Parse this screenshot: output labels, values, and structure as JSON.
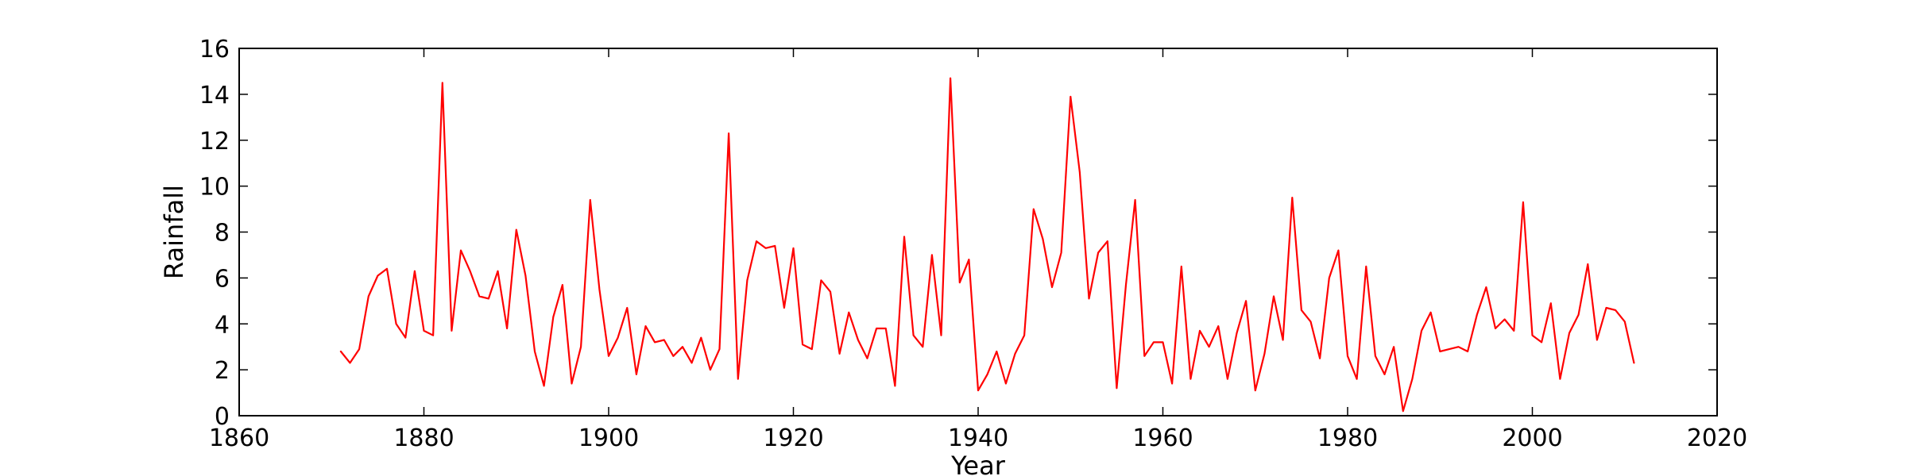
{
  "chart_data": {
    "type": "line",
    "title": "",
    "xlabel": "Year",
    "ylabel": "Rainfall",
    "xlim": [
      1860,
      2020
    ],
    "ylim": [
      0,
      16
    ],
    "xticks": [
      1860,
      1880,
      1900,
      1920,
      1940,
      1960,
      1980,
      2000,
      2020
    ],
    "yticks": [
      0,
      2,
      4,
      6,
      8,
      10,
      12,
      14,
      16
    ],
    "grid": false,
    "legend": "none",
    "series": [
      {
        "color": "#ff0000",
        "x": [
          1871,
          1872,
          1873,
          1874,
          1875,
          1876,
          1877,
          1878,
          1879,
          1880,
          1881,
          1882,
          1883,
          1884,
          1885,
          1886,
          1887,
          1888,
          1889,
          1890,
          1891,
          1892,
          1893,
          1894,
          1895,
          1896,
          1897,
          1898,
          1899,
          1900,
          1901,
          1902,
          1903,
          1904,
          1905,
          1906,
          1907,
          1908,
          1909,
          1910,
          1911,
          1912,
          1913,
          1914,
          1915,
          1916,
          1917,
          1918,
          1919,
          1920,
          1921,
          1922,
          1923,
          1924,
          1925,
          1926,
          1927,
          1928,
          1929,
          1930,
          1931,
          1932,
          1933,
          1934,
          1935,
          1936,
          1937,
          1938,
          1939,
          1940,
          1941,
          1942,
          1943,
          1944,
          1945,
          1946,
          1947,
          1948,
          1949,
          1950,
          1951,
          1952,
          1953,
          1954,
          1955,
          1956,
          1957,
          1958,
          1959,
          1960,
          1961,
          1962,
          1963,
          1964,
          1965,
          1966,
          1967,
          1968,
          1969,
          1970,
          1971,
          1972,
          1973,
          1974,
          1975,
          1976,
          1977,
          1978,
          1979,
          1980,
          1981,
          1982,
          1983,
          1984,
          1985,
          1986,
          1987,
          1988,
          1989,
          1990,
          1991,
          1992,
          1993,
          1994,
          1995,
          1996,
          1997,
          1998,
          1999,
          2000,
          2001,
          2002,
          2003,
          2004,
          2005,
          2006,
          2007,
          2008,
          2009,
          2010,
          2011
        ],
        "y": [
          2.8,
          2.3,
          2.9,
          5.2,
          6.1,
          6.4,
          4.0,
          3.4,
          6.3,
          3.7,
          3.5,
          14.5,
          3.7,
          7.2,
          6.3,
          5.2,
          5.1,
          6.3,
          3.8,
          8.1,
          6.1,
          2.8,
          1.3,
          4.3,
          5.7,
          1.4,
          3.0,
          9.4,
          5.5,
          2.6,
          3.4,
          4.7,
          1.8,
          3.9,
          3.2,
          3.3,
          2.6,
          3.0,
          2.3,
          3.4,
          2.0,
          2.9,
          12.3,
          1.6,
          5.9,
          7.6,
          7.3,
          7.4,
          4.7,
          7.3,
          3.1,
          2.9,
          5.9,
          5.4,
          2.7,
          4.5,
          3.3,
          2.5,
          3.8,
          3.8,
          1.3,
          7.8,
          3.5,
          3.0,
          7.0,
          3.5,
          14.7,
          5.8,
          6.8,
          1.1,
          1.8,
          2.8,
          1.4,
          2.7,
          3.5,
          9.0,
          7.7,
          5.6,
          7.1,
          13.9,
          10.6,
          5.1,
          7.1,
          7.6,
          1.2,
          5.7,
          9.4,
          2.6,
          3.2,
          3.2,
          1.4,
          6.5,
          1.6,
          3.7,
          3.0,
          3.9,
          1.6,
          3.6,
          5.0,
          1.1,
          2.7,
          5.2,
          3.3,
          9.5,
          4.6,
          4.1,
          2.5,
          6.0,
          7.2,
          2.6,
          1.6,
          6.5,
          2.6,
          1.8,
          3.0,
          0.2,
          1.6,
          3.7,
          4.5,
          2.8,
          2.9,
          3.0,
          2.8,
          4.4,
          5.6,
          3.8,
          4.2,
          3.7,
          9.3,
          3.5,
          3.2,
          4.9,
          1.6,
          3.6,
          4.4,
          6.6,
          3.3,
          4.7,
          4.6,
          4.1,
          2.3
        ]
      }
    ]
  }
}
